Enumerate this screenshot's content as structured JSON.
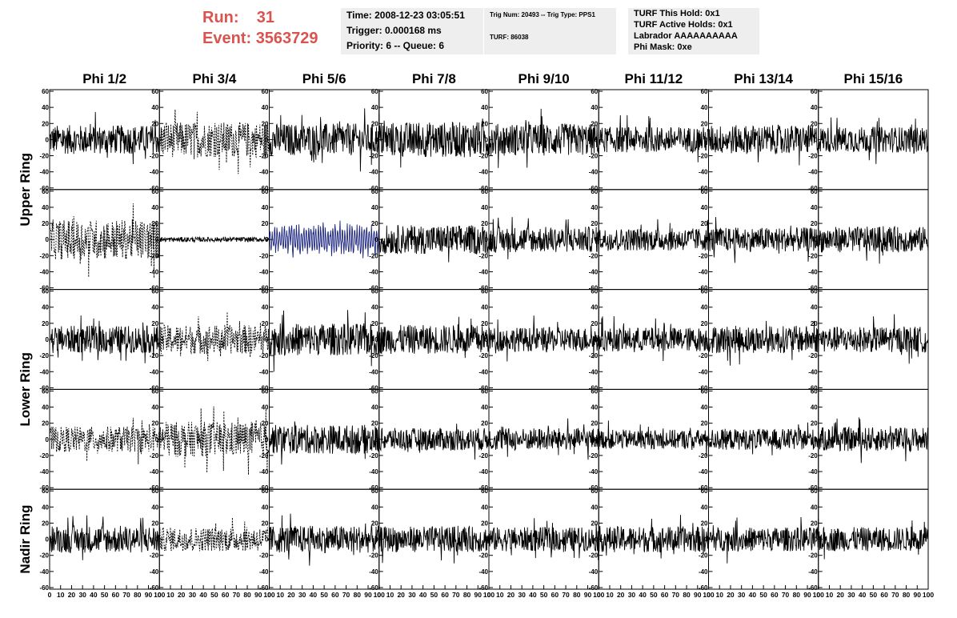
{
  "header": {
    "run_label": "Run:",
    "run_value": "31",
    "event_label": "Event:",
    "event_value": "3563729"
  },
  "time_box": {
    "time": "Time: 2008-12-23 03:05:51",
    "trigger": "Trigger: 0.000168 ms",
    "priority": "Priority: 6 -- Queue: 6"
  },
  "trig_box": {
    "trig_line": "Trig Num: 20493 -- Trig Type: PPS1",
    "turf_line": "TURF: 86038"
  },
  "turf_box": {
    "hold": "TURF This Hold: 0x1",
    "active": "TURF Active Holds: 0x1",
    "labrador": "Labrador AAAAAAAAAA",
    "phi_mask": "Phi Mask: 0xe"
  },
  "chart_data": {
    "type": "line",
    "columns": [
      "Phi 1/2",
      "Phi 3/4",
      "Phi 5/6",
      "Phi 7/8",
      "Phi 9/10",
      "Phi 11/12",
      "Phi 13/14",
      "Phi 15/16"
    ],
    "ring_labels": [
      "Upper Ring",
      "Lower Ring",
      "Nadir Ring"
    ],
    "rows": 5,
    "xlim": [
      0,
      100
    ],
    "ylim": [
      -60,
      60
    ],
    "x_ticks": [
      0,
      10,
      20,
      30,
      40,
      50,
      60,
      70,
      80,
      90,
      100
    ],
    "y_ticks": [
      -60,
      -40,
      -20,
      0,
      20,
      40,
      60
    ],
    "samples_per_trace": 260,
    "grid": false,
    "colors": {
      "trace": "#000000",
      "highlight": "#1a237e"
    },
    "traces": [
      [
        "solid",
        "dotted",
        "solid",
        "solid",
        "solid",
        "solid",
        "solid",
        "solid"
      ],
      [
        "dotted",
        "flat",
        "blue",
        "solid",
        "solid",
        "solid",
        "solid",
        "solid"
      ],
      [
        "solid",
        "dotted",
        "solid",
        "solid",
        "solid",
        "solid",
        "solid",
        "solid"
      ],
      [
        "dotted",
        "dotted",
        "solid",
        "solid",
        "solid",
        "solid",
        "solid",
        "solid"
      ],
      [
        "solid",
        "dotted",
        "solid",
        "solid",
        "solid",
        "solid",
        "solid",
        "solid"
      ]
    ],
    "amplitudes": [
      [
        18,
        22,
        20,
        22,
        20,
        16,
        18,
        16
      ],
      [
        25,
        3,
        20,
        18,
        16,
        14,
        15,
        16
      ],
      [
        17,
        18,
        20,
        18,
        15,
        15,
        17,
        16
      ],
      [
        16,
        22,
        18,
        14,
        14,
        12,
        13,
        15
      ],
      [
        17,
        15,
        17,
        16,
        15,
        16,
        15,
        15
      ]
    ]
  }
}
